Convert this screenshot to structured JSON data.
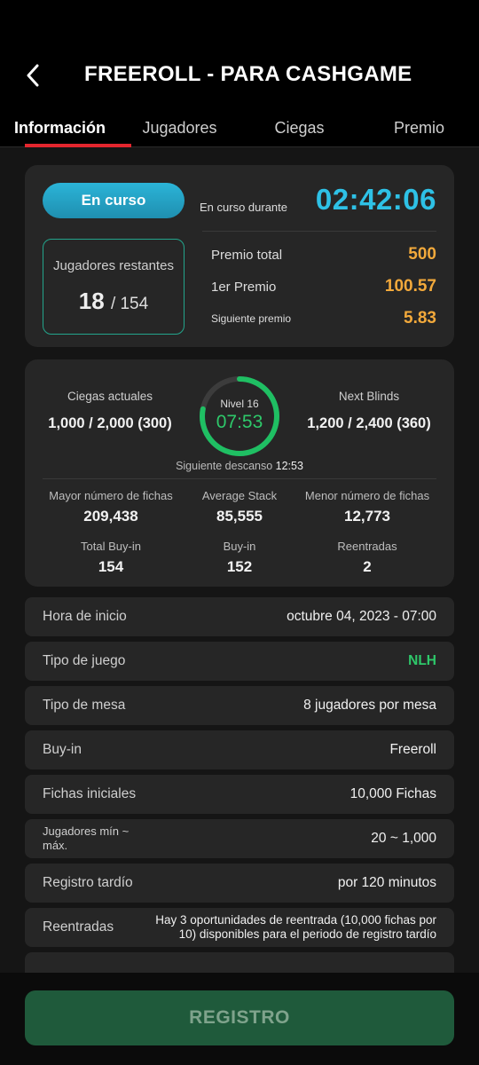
{
  "header": {
    "title": "FREEROLL - PARA CASHGAME"
  },
  "tabs": [
    {
      "label": "Información",
      "active": true
    },
    {
      "label": "Jugadores",
      "active": false
    },
    {
      "label": "Ciegas",
      "active": false
    },
    {
      "label": "Premio",
      "active": false
    }
  ],
  "summary": {
    "status": "En curso",
    "running_label": "En curso durante",
    "timer": "02:42:06",
    "players_label": "Jugadores restantes",
    "players_remaining": "18",
    "players_total": "/ 154",
    "prizes": [
      {
        "label": "Premio total",
        "value": "500"
      },
      {
        "label": "1er Premio",
        "value": "100.57"
      },
      {
        "label": "Siguiente premio",
        "value": "5.83"
      }
    ]
  },
  "blinds": {
    "current_label": "Ciegas actuales",
    "current_value": "1,000 / 2,000 (300)",
    "next_label": "Next Blinds",
    "next_value": "1,200 / 2,400 (360)",
    "level": "Nivel 16",
    "level_time": "07:53",
    "level_progress": 0.78,
    "next_break_label": "Siguiente descanso",
    "next_break_value": "12:53"
  },
  "stats": [
    {
      "label": "Mayor número de fichas",
      "value": "209,438"
    },
    {
      "label": "Average Stack",
      "value": "85,555"
    },
    {
      "label": "Menor número de fichas",
      "value": "12,773"
    },
    {
      "label": "Total Buy-in",
      "value": "154"
    },
    {
      "label": "Buy-in",
      "value": "152"
    },
    {
      "label": "Reentradas",
      "value": "2"
    }
  ],
  "details": [
    {
      "key": "Hora de inicio",
      "value": "octubre 04, 2023 - 07:00"
    },
    {
      "key": "Tipo de juego",
      "value": "NLH"
    },
    {
      "key": "Tipo de mesa",
      "value": "8 jugadores por mesa"
    },
    {
      "key": "Buy-in",
      "value": "Freeroll"
    },
    {
      "key": "Fichas iniciales",
      "value": "10,000 Fichas"
    },
    {
      "key": "Jugadores mín ~ máx.",
      "value": "20 ~ 1,000"
    },
    {
      "key": "Registro tardío",
      "value": "por 120 minutos"
    },
    {
      "key": "Reentradas",
      "value": "Hay 3 oportunidades de reentrada (10,000 fichas por 10) disponibles para el periodo de registro tardío"
    }
  ],
  "register_label": "REGISTRO",
  "colors": {
    "accent_tab": "#e3262e",
    "timer": "#2ec1e6",
    "prize": "#f2a93b",
    "green": "#2ec86a"
  }
}
